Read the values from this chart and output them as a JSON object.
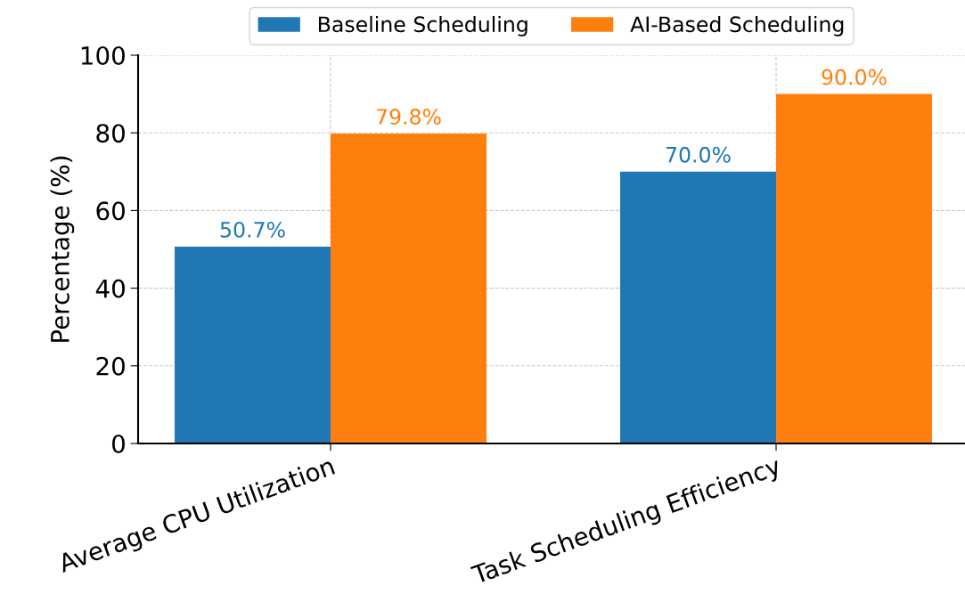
{
  "chart_data": {
    "type": "bar",
    "ylabel": "Percentage (%)",
    "categories": [
      "Average CPU Utilization",
      "Task Scheduling Efficiency"
    ],
    "series": [
      {
        "name": "Baseline Scheduling",
        "color": "#1f77b4",
        "values": [
          50.7,
          70.0
        ],
        "value_labels": [
          "50.7%",
          "70.0%"
        ]
      },
      {
        "name": "AI-Based Scheduling",
        "color": "#ff7f0e",
        "values": [
          79.8,
          90.0
        ],
        "value_labels": [
          "79.8%",
          "90.0%"
        ]
      }
    ],
    "ylim": [
      0,
      100
    ],
    "yticks": [
      0,
      20,
      40,
      60,
      80,
      100
    ],
    "grid": true,
    "legend": "top"
  }
}
